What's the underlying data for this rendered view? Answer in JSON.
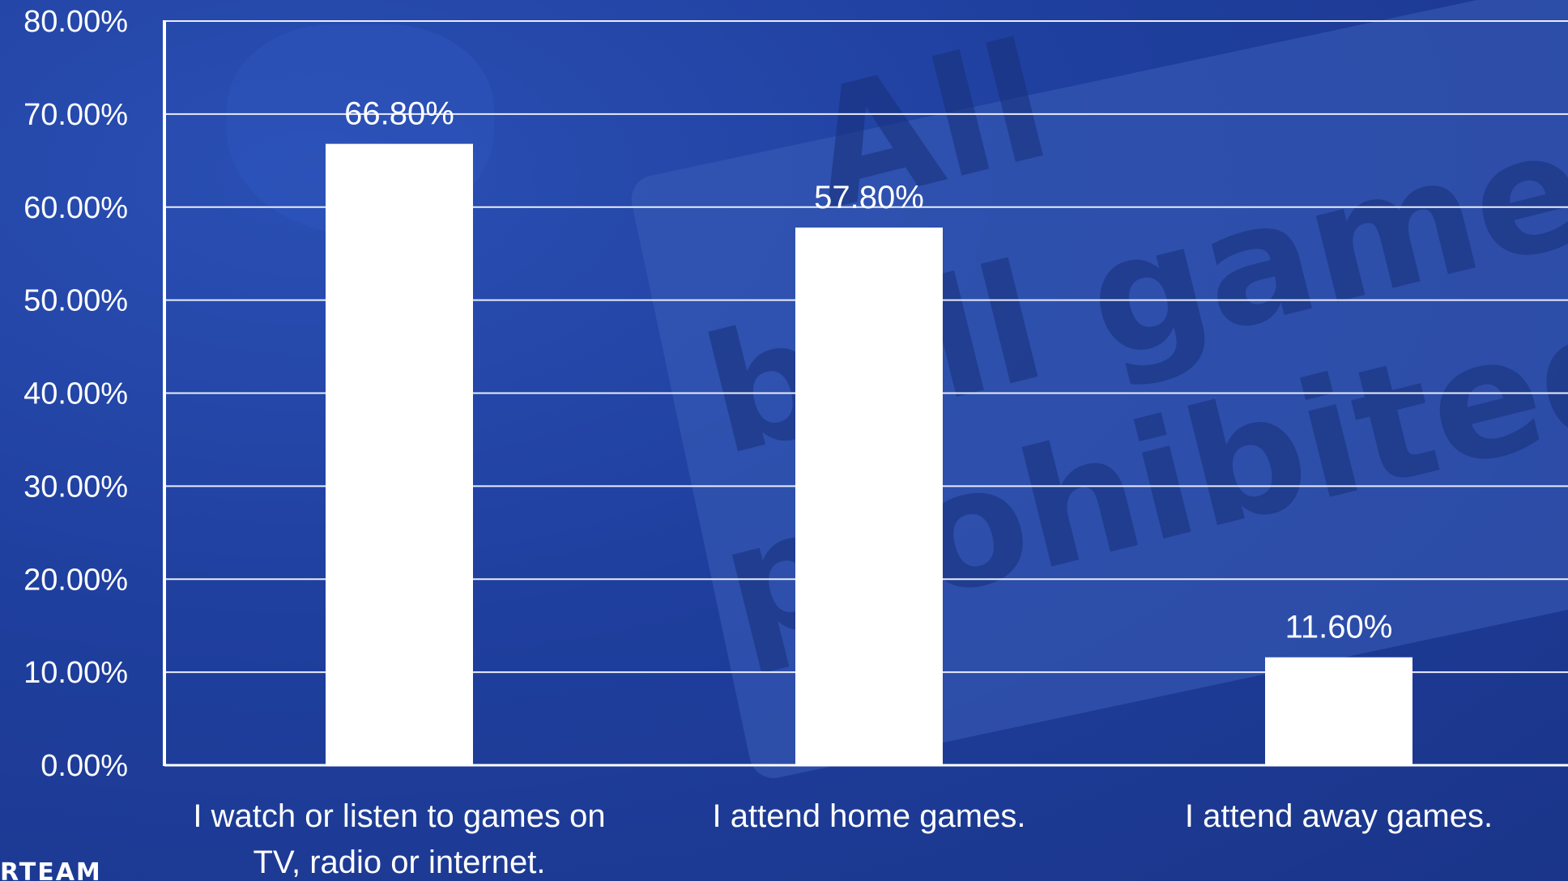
{
  "chart_data": {
    "type": "bar",
    "categories": [
      [
        "I watch or listen to games on",
        "TV, radio or internet."
      ],
      [
        "I attend home games."
      ],
      [
        "I attend away games."
      ]
    ],
    "values": [
      66.8,
      57.8,
      11.6
    ],
    "data_labels": [
      "66.80%",
      "57.80%",
      "11.60%"
    ],
    "ylim": [
      0,
      80
    ],
    "yticks": [
      "0.00%",
      "10.00%",
      "20.00%",
      "30.00%",
      "40.00%",
      "50.00%",
      "60.00%",
      "70.00%",
      "80.00%"
    ],
    "grid": true,
    "colors": {
      "bar": "#ffffff",
      "gridline": "#e8ecf8",
      "background": "#1f3f9e"
    }
  },
  "background_text": [
    "All",
    "ball games",
    "prohibited"
  ],
  "logo_text": "RTEAM"
}
